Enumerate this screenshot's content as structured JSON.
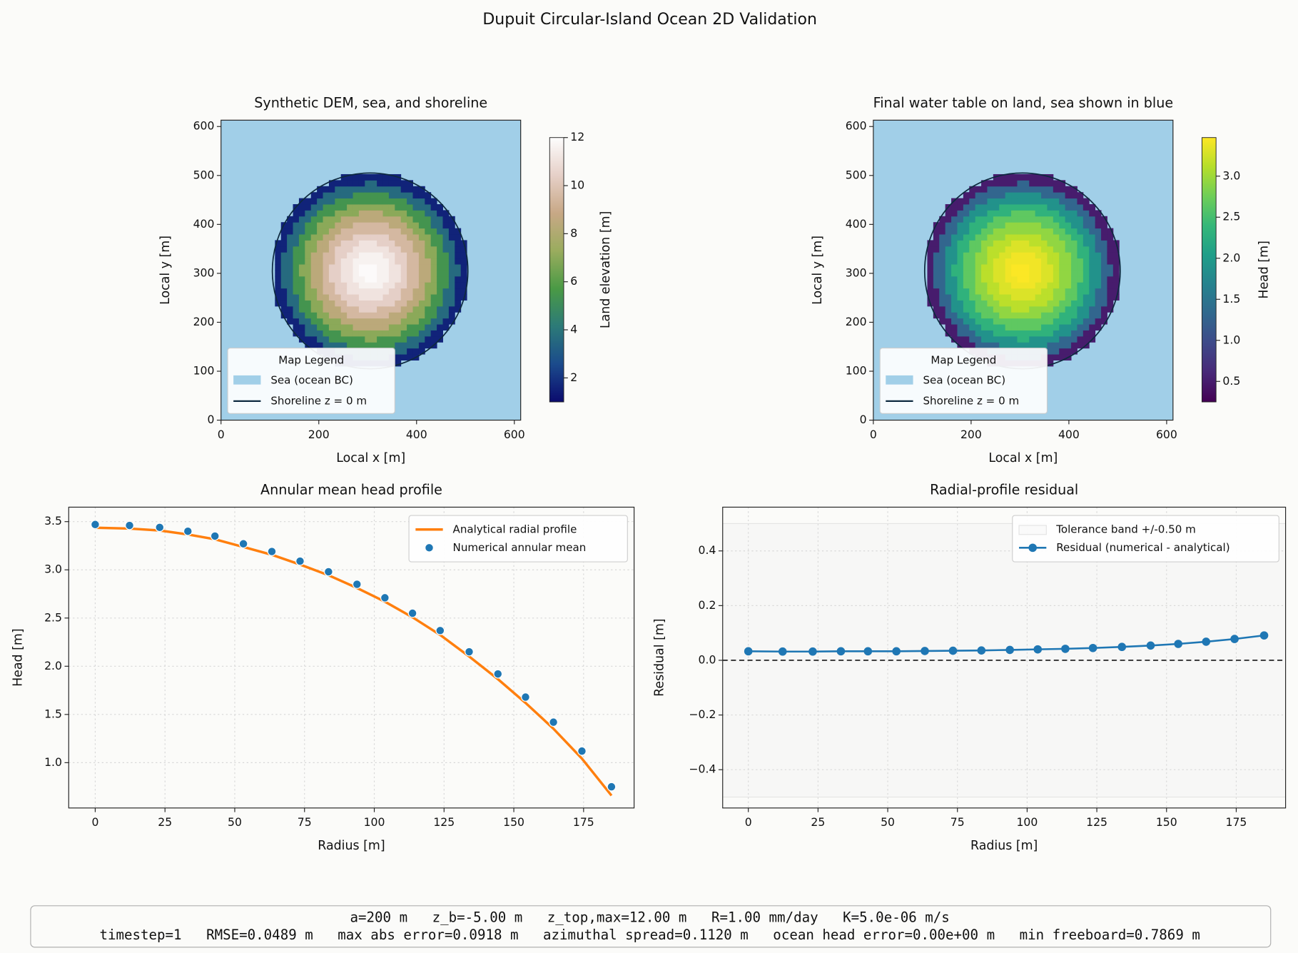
{
  "title": "Dupuit Circular-Island Ocean 2D Validation",
  "footer": [
    "a=200 m   z_b=-5.00 m   z_top,max=12.00 m   R=1.00 mm/day   K=5.0e-06 m/s",
    "timestep=1   RMSE=0.0489 m   max abs error=0.0918 m   azimuthal spread=0.1120 m   ocean head error=0.00e+00 m   min freeboard=0.7869 m"
  ],
  "chart_data": [
    {
      "type": "heatmap",
      "title": "Synthetic DEM, sea, and shoreline",
      "xlabel": "Local x [m]",
      "ylabel": "Local y [m]",
      "xlim": [
        0,
        613
      ],
      "ylim": [
        0,
        613
      ],
      "xticks": [
        0,
        200,
        400,
        600
      ],
      "yticks": [
        0,
        100,
        200,
        300,
        400,
        500,
        600
      ],
      "field": {
        "center": [
          305,
          305
        ],
        "radius_edges": [
          0,
          20,
          40,
          60,
          80,
          100,
          120,
          140,
          160,
          180,
          200
        ],
        "values": [
          11.9,
          11.6,
          11.1,
          10.4,
          9.5,
          8.4,
          7.0,
          5.4,
          3.6,
          1.6
        ]
      },
      "colorbar": {
        "label": "Land elevation [m]",
        "lim": [
          1,
          12
        ],
        "ticks": [
          2,
          4,
          6,
          8,
          10,
          12
        ],
        "colors": [
          "#0b0b6e",
          "#1b4b8c",
          "#2c7a78",
          "#4a9a45",
          "#9aac5e",
          "#c8a886",
          "#e6d0c8",
          "#fdfdfd"
        ]
      },
      "sea": {
        "label": "Sea (ocean BC)",
        "color": "#a1cfe8"
      },
      "shoreline": {
        "label": "Shoreline z = 0 m",
        "color": "#0e2a40",
        "radius": 200
      },
      "legend_title": "Map Legend",
      "legend": "lower left"
    },
    {
      "type": "heatmap",
      "title": "Final water table on land, sea shown in blue",
      "xlabel": "Local x [m]",
      "ylabel": "Local y [m]",
      "xlim": [
        0,
        613
      ],
      "ylim": [
        0,
        613
      ],
      "xticks": [
        0,
        200,
        400,
        600
      ],
      "yticks": [
        0,
        100,
        200,
        300,
        400,
        500,
        600
      ],
      "field": {
        "center": [
          305,
          305
        ],
        "radius_edges": [
          0,
          20,
          40,
          60,
          80,
          100,
          120,
          140,
          160,
          180,
          200
        ],
        "values": [
          3.46,
          3.41,
          3.3,
          3.14,
          2.93,
          2.66,
          2.32,
          1.89,
          1.3,
          0.5
        ]
      },
      "colorbar": {
        "label": "Head [m]",
        "lim": [
          0.25,
          3.47
        ],
        "ticks": [
          {
            "value": 0.5,
            "label": "0.5"
          },
          {
            "value": 1,
            "label": "1.0"
          },
          1.5,
          {
            "value": 2,
            "label": "2.0"
          },
          2.5,
          {
            "value": 3,
            "label": "3.0"
          }
        ],
        "colors": [
          "#440154",
          "#482878",
          "#3e4989",
          "#31688e",
          "#26828e",
          "#1f9e89",
          "#35b779",
          "#6ece58",
          "#b5de2b",
          "#fde725"
        ]
      },
      "sea": {
        "label": "Sea (ocean BC)",
        "color": "#a1cfe8"
      },
      "shoreline": {
        "label": "Shoreline z = 0 m",
        "color": "#0e2a40",
        "radius": 200
      },
      "legend_title": "Map Legend",
      "legend": "lower left"
    },
    {
      "type": "line",
      "title": "Annular mean head profile",
      "xlabel": "Radius [m]",
      "ylabel": "Head [m]",
      "xlim": [
        -9.5,
        193.1
      ],
      "ylim": [
        0.53,
        3.65
      ],
      "xticks": [
        0,
        25,
        50,
        75,
        100,
        125,
        150,
        175
      ],
      "yticks": [
        {
          "value": 1,
          "label": "1.0"
        },
        1.5,
        {
          "value": 2,
          "label": "2.0"
        },
        2.5,
        {
          "value": 3,
          "label": "3.0"
        },
        3.5
      ],
      "grid": true,
      "legend": "upper right",
      "x": [
        0,
        12.3,
        23.1,
        33.2,
        42.9,
        53.1,
        63.3,
        73.4,
        83.6,
        93.8,
        103.8,
        113.7,
        123.6,
        134.0,
        144.3,
        154.2,
        164.2,
        174.4,
        185.0
      ],
      "series": [
        {
          "name": "Analytical radial profile",
          "color": "#ff7f0e",
          "style": "line",
          "values": [
            3.437,
            3.428,
            3.408,
            3.367,
            3.317,
            3.237,
            3.156,
            3.055,
            2.944,
            2.812,
            2.67,
            2.508,
            2.325,
            2.101,
            1.866,
            1.62,
            1.352,
            1.042,
            0.659
          ]
        },
        {
          "name": "Numerical annular mean",
          "color": "#1f77b4",
          "style": "scatter",
          "values": [
            3.47,
            3.46,
            3.44,
            3.4,
            3.35,
            3.27,
            3.19,
            3.09,
            2.98,
            2.85,
            2.71,
            2.55,
            2.37,
            2.15,
            1.92,
            1.68,
            1.42,
            1.12,
            0.75
          ]
        }
      ]
    },
    {
      "type": "line",
      "title": "Radial-profile residual",
      "xlabel": "Radius [m]",
      "ylabel": "Residual [m]",
      "xlim": [
        -9.2,
        192.7
      ],
      "ylim": [
        -0.54,
        0.56
      ],
      "xticks": [
        0,
        25,
        50,
        75,
        100,
        125,
        150,
        175
      ],
      "yticks": [
        {
          "value": -0.4,
          "label": "−0.4"
        },
        {
          "value": -0.2,
          "label": "−0.2"
        },
        {
          "value": 0,
          "label": "0.0"
        },
        0.2,
        0.4
      ],
      "grid": true,
      "legend": "upper right",
      "band": {
        "name": "Tolerance band +/-0.50 m",
        "color": "#e4e4e4",
        "lower": -0.5,
        "upper": 0.5
      },
      "reference_line": 0,
      "x": [
        0,
        12.3,
        23.1,
        33.2,
        42.9,
        53.1,
        63.3,
        73.4,
        83.6,
        93.8,
        103.8,
        113.7,
        123.6,
        134.0,
        144.3,
        154.2,
        164.2,
        174.4,
        185.0
      ],
      "series": [
        {
          "name": "Residual (numerical - analytical)",
          "color": "#1f77b4",
          "style": "line-marker",
          "values": [
            0.033,
            0.032,
            0.032,
            0.033,
            0.033,
            0.033,
            0.034,
            0.035,
            0.036,
            0.038,
            0.04,
            0.042,
            0.045,
            0.049,
            0.054,
            0.06,
            0.068,
            0.078,
            0.091
          ]
        }
      ]
    }
  ]
}
